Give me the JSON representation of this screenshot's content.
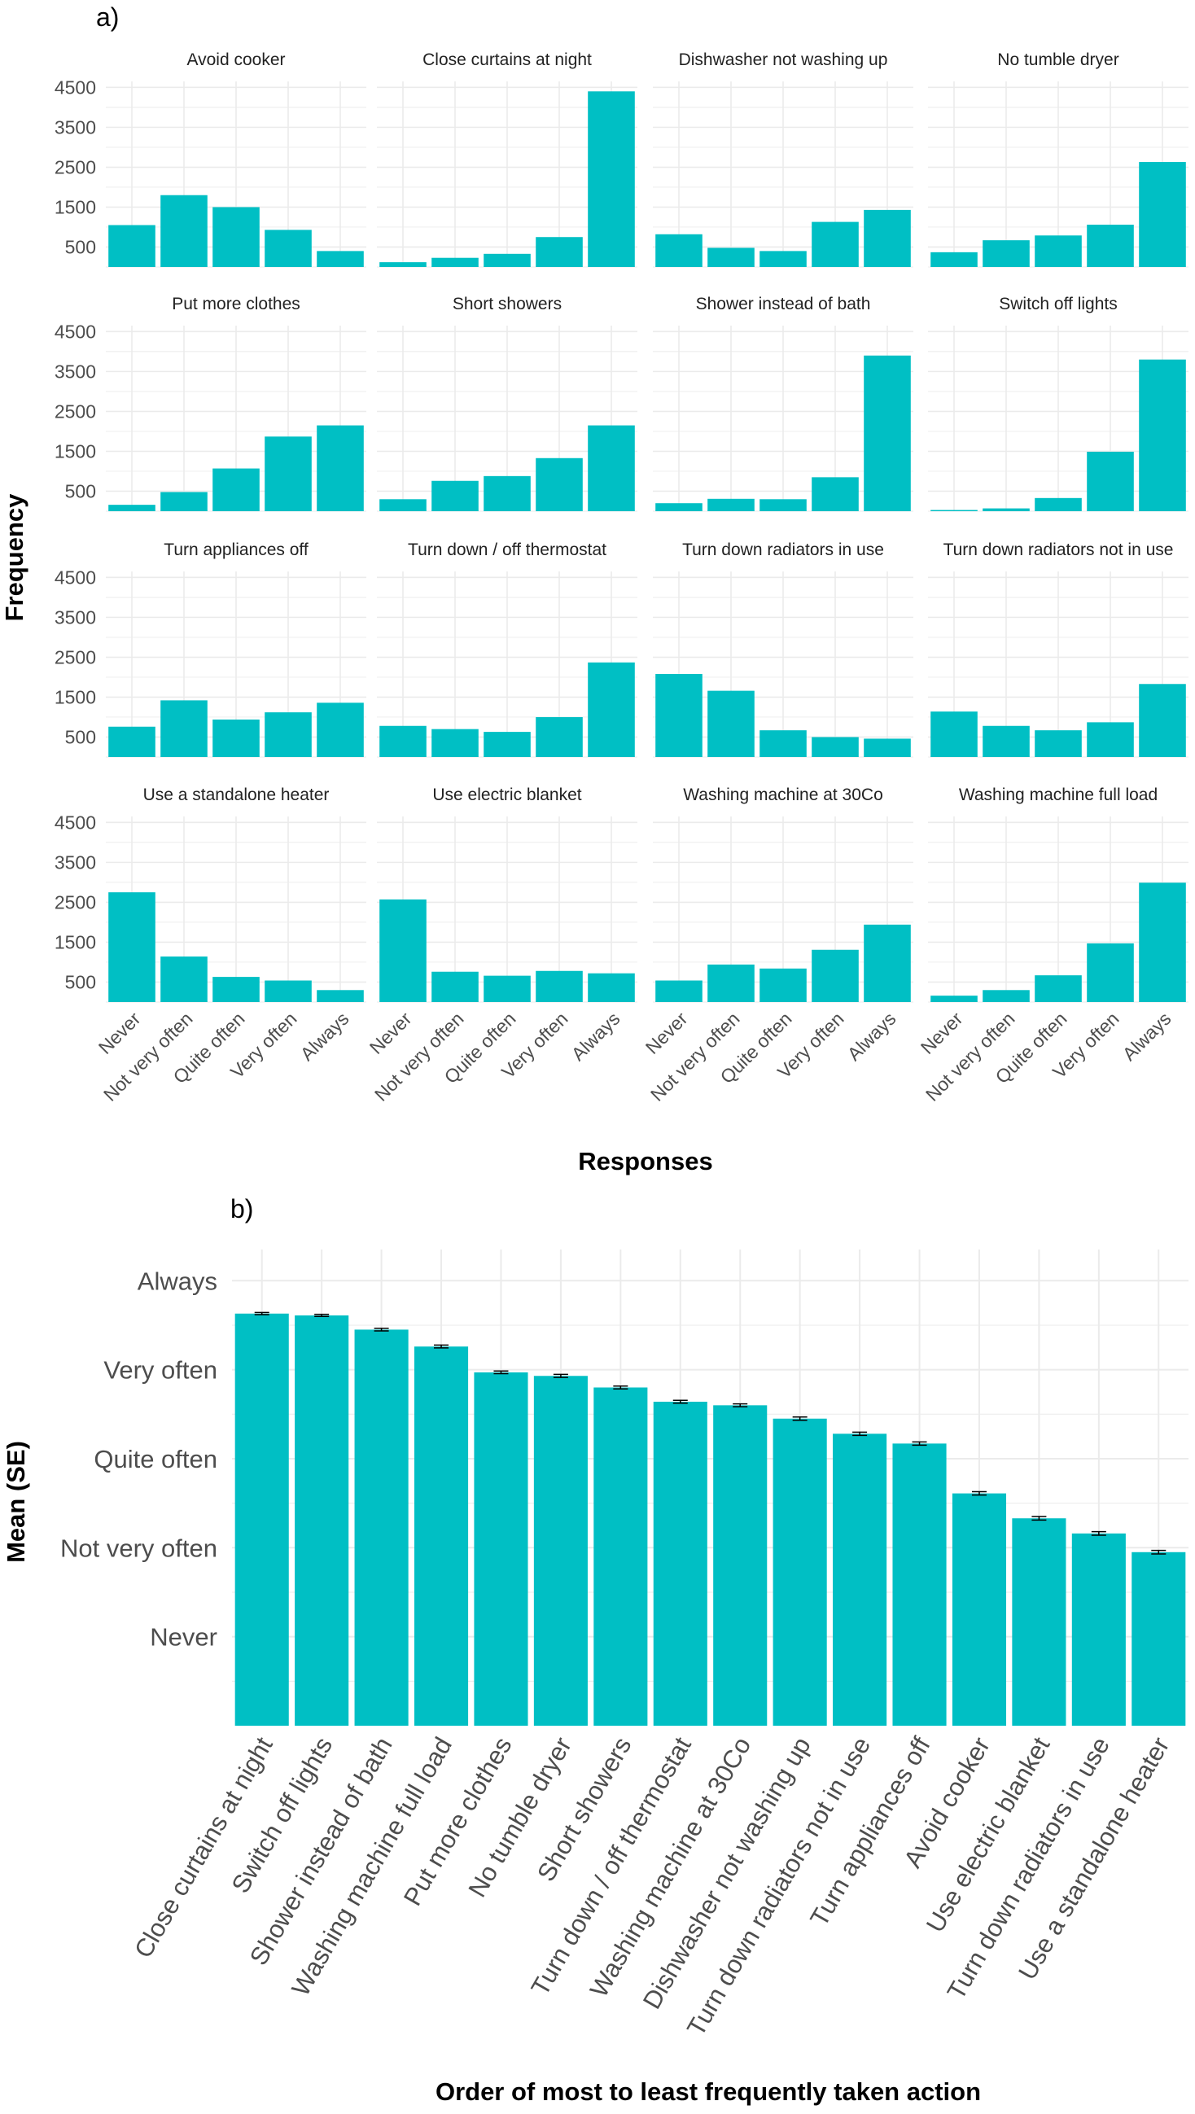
{
  "colors": {
    "bar": "#00BFC4",
    "grid": "#EBEBEB",
    "error_bar": "#000000"
  },
  "chart_data": [
    {
      "type": "bar",
      "panel_label": "a)",
      "xlabel": "Responses",
      "ylabel": "Frequency",
      "categories": [
        "Never",
        "Not very often",
        "Quite often",
        "Very often",
        "Always"
      ],
      "y_ticks": [
        500,
        1500,
        2500,
        3500,
        4500
      ],
      "ylim": [
        0,
        4500
      ],
      "grid": true,
      "facets": [
        {
          "title": "Avoid cooker",
          "values": [
            1050,
            1800,
            1500,
            930,
            400
          ]
        },
        {
          "title": "Close curtains at night",
          "values": [
            120,
            230,
            330,
            750,
            4400
          ]
        },
        {
          "title": "Dishwasher not washing up",
          "values": [
            820,
            480,
            400,
            1130,
            1430
          ]
        },
        {
          "title": "No tumble dryer",
          "values": [
            370,
            670,
            790,
            1060,
            2630
          ]
        },
        {
          "title": "Put more clothes",
          "values": [
            160,
            480,
            1070,
            1870,
            2150
          ]
        },
        {
          "title": "Short showers",
          "values": [
            300,
            760,
            880,
            1330,
            2150
          ]
        },
        {
          "title": "Shower instead of bath",
          "values": [
            200,
            310,
            300,
            850,
            3900
          ]
        },
        {
          "title": "Switch off lights",
          "values": [
            30,
            70,
            330,
            1490,
            3800
          ]
        },
        {
          "title": "Turn appliances off",
          "values": [
            760,
            1420,
            940,
            1120,
            1360
          ]
        },
        {
          "title": "Turn down / off thermostat",
          "values": [
            780,
            700,
            630,
            1000,
            2370
          ]
        },
        {
          "title": "Turn down radiators in use",
          "values": [
            2080,
            1660,
            670,
            500,
            460
          ]
        },
        {
          "title": "Turn down radiators not in use",
          "values": [
            1140,
            780,
            670,
            870,
            1830
          ]
        },
        {
          "title": "Use a standalone heater",
          "values": [
            2750,
            1140,
            630,
            540,
            300
          ]
        },
        {
          "title": "Use electric blanket",
          "values": [
            2570,
            760,
            660,
            780,
            720
          ]
        },
        {
          "title": "Washing machine at 30Co",
          "values": [
            540,
            940,
            840,
            1310,
            1940
          ]
        },
        {
          "title": "Washing machine full load",
          "values": [
            160,
            300,
            670,
            1470,
            2990
          ]
        }
      ]
    },
    {
      "type": "bar",
      "panel_label": "b)",
      "xlabel": "Order of most to least frequently taken action",
      "ylabel": "Mean (SE)",
      "y_ticks": [
        1,
        2,
        3,
        4,
        5
      ],
      "y_tick_labels": [
        "Never",
        "Not very often",
        "Quite often",
        "Very often",
        "Always"
      ],
      "ylim": [
        0,
        5.35
      ],
      "grid": true,
      "categories": [
        "Close curtains at night",
        "Switch off lights",
        "Shower instead of bath",
        "Washing machine full load",
        "Put more clothes",
        "No tumble dryer",
        "Short showers",
        "Turn down / off thermostat",
        "Washing machine at 30Co",
        "Dishwasher not washing up",
        "Turn down radiators not in use",
        "Turn appliances off",
        "Avoid cooker",
        "Use electric blanket",
        "Turn down radiators in use",
        "Use a standalone heater"
      ],
      "values": [
        4.63,
        4.61,
        4.45,
        4.26,
        3.97,
        3.93,
        3.8,
        3.64,
        3.6,
        3.45,
        3.28,
        3.17,
        2.61,
        2.33,
        2.16,
        1.95
      ],
      "se": [
        0.012,
        0.012,
        0.015,
        0.016,
        0.015,
        0.017,
        0.016,
        0.016,
        0.016,
        0.018,
        0.018,
        0.018,
        0.019,
        0.02,
        0.02,
        0.02
      ]
    }
  ]
}
